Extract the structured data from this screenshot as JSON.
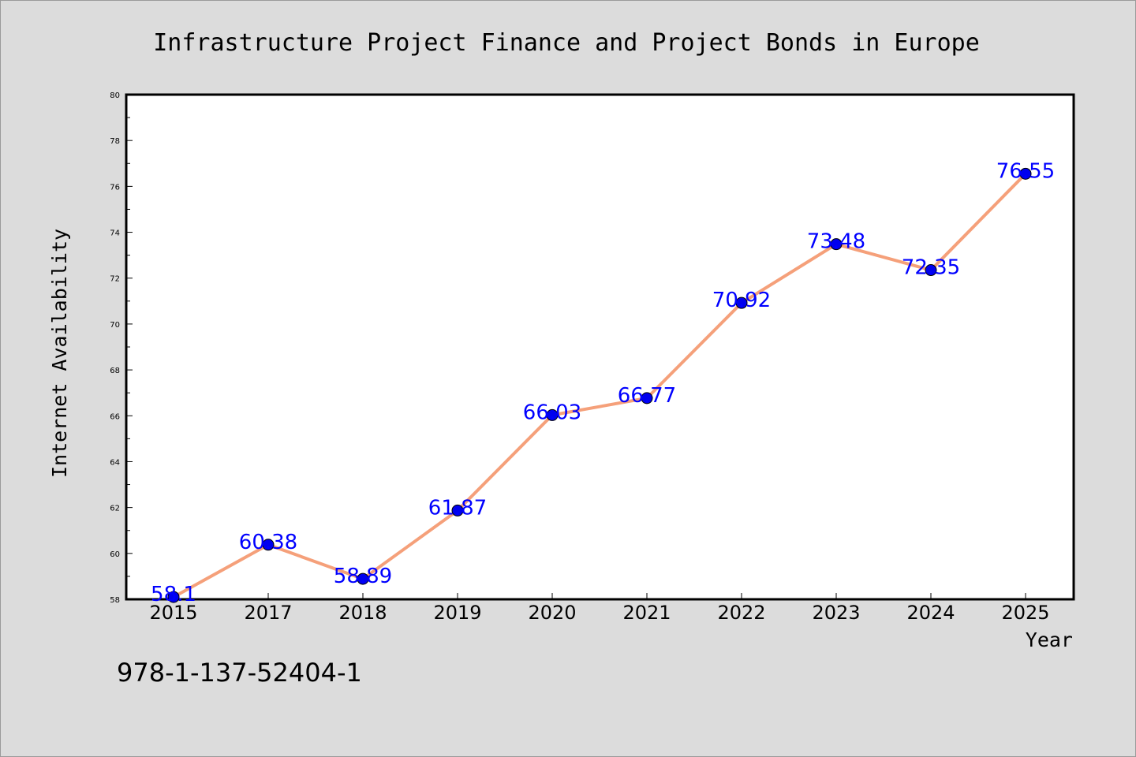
{
  "chart_data": {
    "type": "line",
    "title": "Infrastructure Project Finance and Project Bonds in Europe",
    "xlabel": "Year",
    "ylabel": "Internet Availability",
    "x": [
      "2015",
      "2017",
      "2018",
      "2019",
      "2020",
      "2021",
      "2022",
      "2023",
      "2024",
      "2025"
    ],
    "values": [
      58.1,
      60.38,
      58.89,
      61.87,
      66.03,
      66.77,
      70.92,
      73.48,
      72.35,
      76.55
    ],
    "data_labels": [
      "58.1",
      "60.38",
      "58.89",
      "61.87",
      "66.03",
      "66.77",
      "70.92",
      "73.48",
      "72.35",
      "76.55"
    ],
    "ylim": [
      58,
      80
    ],
    "yticks": [
      "58",
      "60",
      "62",
      "64",
      "66",
      "68",
      "70",
      "72",
      "74",
      "76",
      "78",
      "80"
    ],
    "grid": false,
    "line_color": "#f5a07a",
    "marker_color": "#0000ee",
    "label_color": "#0000ff",
    "background": "#dcdcdc",
    "plot_background": "#ffffff"
  },
  "footer": {
    "isbn": "978-1-137-52404-1"
  }
}
